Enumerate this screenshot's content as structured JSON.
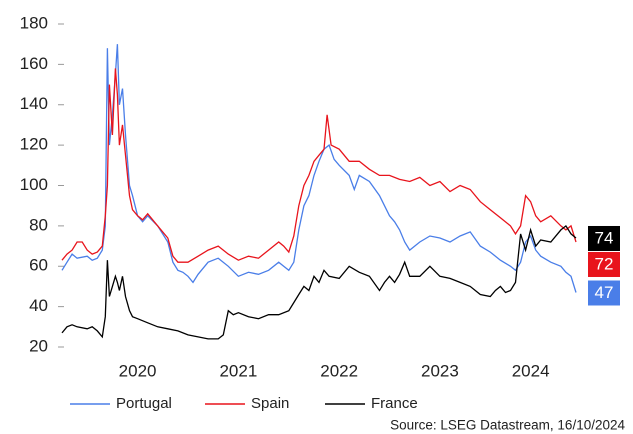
{
  "chart_data": {
    "type": "line",
    "xlim": [
      2019.75,
      2024.85
    ],
    "xticks": [
      {
        "value": 2020.5,
        "label": "2020"
      },
      {
        "value": 2021.5,
        "label": "2021"
      },
      {
        "value": 2022.5,
        "label": "2022"
      },
      {
        "value": 2023.5,
        "label": "2023"
      },
      {
        "value": 2024.4,
        "label": "2024"
      }
    ],
    "ylim": [
      20,
      180
    ],
    "yticks": [
      20,
      40,
      60,
      80,
      100,
      120,
      140,
      160,
      180
    ],
    "grid": false,
    "legend": "bottom",
    "source": "Source: LSEG Datastream, 16/10/2024",
    "series": [
      {
        "name": "Portugal",
        "color": "#4a7ee8",
        "x": [
          2019.75,
          2019.8,
          2019.85,
          2019.9,
          2020.0,
          2020.05,
          2020.1,
          2020.15,
          2020.18,
          2020.2,
          2020.22,
          2020.25,
          2020.28,
          2020.3,
          2020.32,
          2020.35,
          2020.38,
          2020.42,
          2020.45,
          2020.5,
          2020.55,
          2020.6,
          2020.7,
          2020.8,
          2020.85,
          2020.9,
          2020.95,
          2021.0,
          2021.05,
          2021.1,
          2021.2,
          2021.3,
          2021.4,
          2021.5,
          2021.6,
          2021.7,
          2021.8,
          2021.9,
          2021.95,
          2022.0,
          2022.05,
          2022.1,
          2022.15,
          2022.2,
          2022.25,
          2022.3,
          2022.35,
          2022.4,
          2022.45,
          2022.5,
          2022.6,
          2022.65,
          2022.7,
          2022.8,
          2022.9,
          2023.0,
          2023.05,
          2023.1,
          2023.15,
          2023.2,
          2023.3,
          2023.4,
          2023.5,
          2023.6,
          2023.7,
          2023.8,
          2023.9,
          2024.0,
          2024.1,
          2024.2,
          2024.25,
          2024.3,
          2024.35,
          2024.4,
          2024.45,
          2024.5,
          2024.6,
          2024.7,
          2024.75,
          2024.8,
          2024.85
        ],
        "values": [
          58,
          62,
          66,
          64,
          65,
          63,
          64,
          68,
          80,
          168,
          120,
          135,
          155,
          170,
          140,
          148,
          125,
          100,
          95,
          85,
          82,
          85,
          80,
          72,
          62,
          58,
          57,
          55,
          52,
          56,
          62,
          64,
          60,
          55,
          57,
          56,
          58,
          62,
          60,
          58,
          62,
          78,
          90,
          95,
          105,
          112,
          118,
          120,
          113,
          110,
          105,
          98,
          105,
          102,
          95,
          85,
          82,
          78,
          72,
          68,
          72,
          75,
          74,
          72,
          75,
          77,
          70,
          67,
          63,
          60,
          58,
          62,
          72,
          75,
          68,
          65,
          62,
          60,
          57,
          55,
          47
        ]
      },
      {
        "name": "Spain",
        "color": "#e8141c",
        "x": [
          2019.75,
          2019.8,
          2019.85,
          2019.9,
          2019.95,
          2020.0,
          2020.05,
          2020.1,
          2020.15,
          2020.18,
          2020.2,
          2020.22,
          2020.25,
          2020.28,
          2020.3,
          2020.32,
          2020.35,
          2020.38,
          2020.42,
          2020.45,
          2020.5,
          2020.55,
          2020.6,
          2020.7,
          2020.8,
          2020.85,
          2020.9,
          2020.95,
          2021.0,
          2021.1,
          2021.2,
          2021.3,
          2021.4,
          2021.5,
          2021.6,
          2021.7,
          2021.8,
          2021.9,
          2021.95,
          2022.0,
          2022.05,
          2022.1,
          2022.15,
          2022.2,
          2022.25,
          2022.3,
          2022.35,
          2022.38,
          2022.42,
          2022.5,
          2022.6,
          2022.7,
          2022.8,
          2022.9,
          2023.0,
          2023.1,
          2023.2,
          2023.3,
          2023.4,
          2023.5,
          2023.6,
          2023.7,
          2023.8,
          2023.9,
          2024.0,
          2024.1,
          2024.2,
          2024.25,
          2024.3,
          2024.35,
          2024.4,
          2024.45,
          2024.5,
          2024.6,
          2024.7,
          2024.75,
          2024.8,
          2024.85
        ],
        "values": [
          63,
          66,
          68,
          72,
          72,
          68,
          66,
          67,
          70,
          85,
          100,
          150,
          125,
          158,
          145,
          120,
          130,
          115,
          95,
          88,
          85,
          83,
          86,
          80,
          74,
          65,
          62,
          62,
          62,
          65,
          68,
          70,
          66,
          63,
          65,
          64,
          68,
          72,
          70,
          67,
          75,
          90,
          100,
          105,
          112,
          115,
          118,
          135,
          120,
          118,
          112,
          112,
          108,
          105,
          105,
          103,
          102,
          104,
          100,
          102,
          97,
          100,
          98,
          92,
          88,
          84,
          80,
          76,
          80,
          95,
          92,
          85,
          82,
          85,
          80,
          78,
          80,
          72
        ]
      },
      {
        "name": "France",
        "color": "#000000",
        "x": [
          2019.75,
          2019.8,
          2019.85,
          2019.9,
          2020.0,
          2020.05,
          2020.1,
          2020.15,
          2020.18,
          2020.2,
          2020.22,
          2020.25,
          2020.28,
          2020.3,
          2020.32,
          2020.35,
          2020.38,
          2020.42,
          2020.45,
          2020.5,
          2020.6,
          2020.7,
          2020.8,
          2020.9,
          2021.0,
          2021.1,
          2021.2,
          2021.3,
          2021.35,
          2021.4,
          2021.45,
          2021.5,
          2021.6,
          2021.7,
          2021.8,
          2021.9,
          2022.0,
          2022.05,
          2022.1,
          2022.15,
          2022.2,
          2022.25,
          2022.3,
          2022.35,
          2022.4,
          2022.5,
          2022.6,
          2022.7,
          2022.8,
          2022.9,
          2022.95,
          2023.0,
          2023.05,
          2023.1,
          2023.15,
          2023.2,
          2023.3,
          2023.4,
          2023.5,
          2023.6,
          2023.7,
          2023.8,
          2023.9,
          2024.0,
          2024.05,
          2024.1,
          2024.15,
          2024.2,
          2024.25,
          2024.3,
          2024.35,
          2024.4,
          2024.45,
          2024.5,
          2024.6,
          2024.7,
          2024.75,
          2024.8,
          2024.85
        ],
        "values": [
          27,
          30,
          31,
          30,
          29,
          30,
          28,
          25,
          35,
          63,
          45,
          50,
          55,
          52,
          48,
          55,
          45,
          38,
          35,
          34,
          32,
          30,
          29,
          28,
          26,
          25,
          24,
          24,
          26,
          38,
          36,
          37,
          35,
          34,
          36,
          36,
          38,
          42,
          46,
          50,
          48,
          55,
          52,
          58,
          55,
          54,
          60,
          57,
          55,
          48,
          52,
          55,
          52,
          56,
          62,
          55,
          55,
          60,
          55,
          54,
          52,
          50,
          46,
          45,
          48,
          50,
          47,
          48,
          52,
          76,
          68,
          78,
          70,
          73,
          72,
          78,
          80,
          76,
          74
        ]
      }
    ]
  }
}
